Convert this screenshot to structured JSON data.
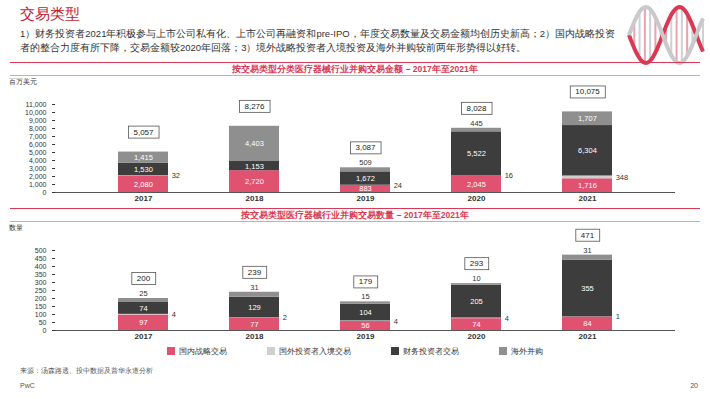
{
  "header": {
    "title": "交易类型",
    "text": "1）财务投资者2021年积极参与上市公司私有化、上市公司再融资和pre-IPO，年度交易数量及交易金额均创历史新高；2）国内战略投资者的整合力度有所下降，交易金额较2020年回落；3）境外战略投资者入境投资及海外并购较前两年形势得以好转。"
  },
  "footer": {
    "source": "来源：汤森路透、投中数据及普华永道分析",
    "brand": "PwC",
    "page": "20"
  },
  "chart_data": [
    {
      "type": "bar",
      "title": "按交易类型分类医疗器械行业并购交易金额 – 2017年至2021年",
      "ylabel": "百万美元",
      "categories": [
        "2017",
        "2018",
        "2019",
        "2020",
        "2021"
      ],
      "series": [
        {
          "name": "国内战略交易",
          "color": "#e0526f",
          "values": [
            2080,
            2720,
            883,
            2045,
            1716
          ],
          "value_labels": [
            "2,080",
            "2,720",
            "883",
            "2,045",
            "1,716"
          ]
        },
        {
          "name": "国外投资者入境交易",
          "color": "#cfcfcf",
          "values": [
            32,
            null,
            24,
            16,
            348
          ]
        },
        {
          "name": "财务投资者交易",
          "color": "#3d3d3d",
          "values": [
            1530,
            1153,
            1672,
            5522,
            6304
          ],
          "value_labels": [
            "1,530",
            "1,153",
            "1,672",
            "5,522",
            "6,304"
          ]
        },
        {
          "name": "海外并购",
          "color": "#8f8f8f",
          "values": [
            1415,
            4403,
            509,
            445,
            1707
          ],
          "value_labels": [
            "1,415",
            "4,403",
            "509",
            "445",
            "1,707"
          ]
        }
      ],
      "totals": [
        5057,
        8276,
        3087,
        8028,
        10075
      ],
      "total_labels": [
        "5,057",
        "8,276",
        "3,087",
        "8,028",
        "10,075"
      ],
      "ylim": [
        0,
        11000
      ],
      "yticks": [
        0,
        {
          "value": 1000,
          "label": "1,000"
        },
        {
          "value": 2000,
          "label": "2,000"
        },
        {
          "value": 3000,
          "label": "3,000"
        },
        {
          "value": 4000,
          "label": "4,000"
        },
        {
          "value": 5000,
          "label": "5,000"
        },
        {
          "value": 6000,
          "label": "6,000"
        },
        {
          "value": 7000,
          "label": "7,000"
        },
        {
          "value": 8000,
          "label": "8,000"
        },
        {
          "value": 9000,
          "label": "9,000"
        },
        {
          "value": 10000,
          "label": "10,000"
        },
        {
          "value": 11000,
          "label": "11,000"
        }
      ],
      "stacked": true,
      "data_labels": true,
      "grid": false
    },
    {
      "type": "bar",
      "title": "按交易类型医疗器械行业并购交易数量 – 2017年至2021年",
      "ylabel": "数量",
      "categories": [
        "2017",
        "2018",
        "2019",
        "2020",
        "2021"
      ],
      "series": [
        {
          "name": "国内战略交易",
          "color": "#e0526f",
          "values": [
            97,
            77,
            56,
            74,
            84
          ]
        },
        {
          "name": "国外投资者入境交易",
          "color": "#cfcfcf",
          "values": [
            4,
            2,
            4,
            4,
            1
          ]
        },
        {
          "name": "财务投资者交易",
          "color": "#3d3d3d",
          "values": [
            74,
            129,
            104,
            205,
            355
          ]
        },
        {
          "name": "海外并购",
          "color": "#8f8f8f",
          "values": [
            25,
            31,
            15,
            10,
            31
          ]
        }
      ],
      "totals": [
        200,
        239,
        179,
        293,
        471
      ],
      "ylim": [
        0,
        500
      ],
      "yticks": [
        0,
        50,
        100,
        150,
        200,
        250,
        300,
        350,
        400,
        450,
        500
      ],
      "stacked": true,
      "data_labels": true,
      "grid": false,
      "legend": "bottom"
    }
  ]
}
